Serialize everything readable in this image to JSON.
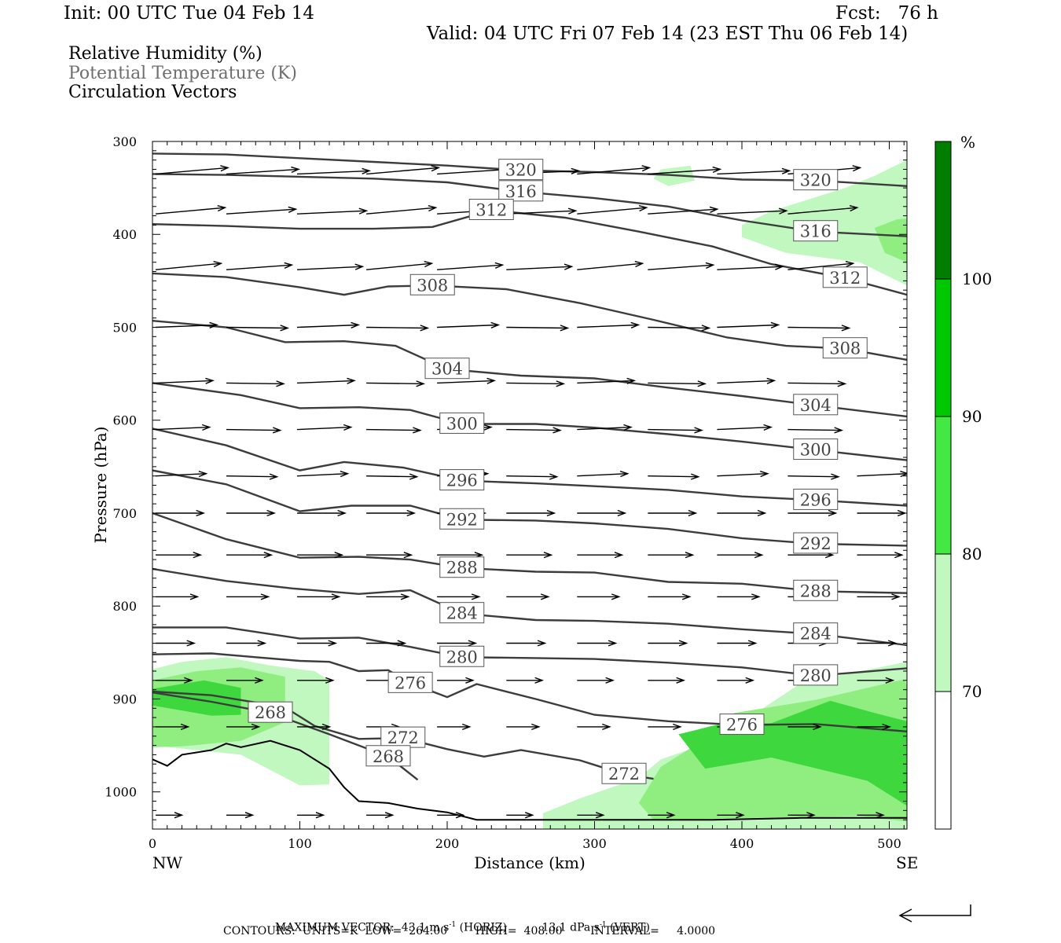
{
  "header": {
    "init": "Init: 00 UTC Tue 04 Feb 14",
    "fcst": "Fcst:   76 h",
    "valid": "Valid: 04 UTC Fri 07 Feb 14 (23 EST Thu 06 Feb 14)"
  },
  "fields": {
    "rh": "Relative Humidity (%)",
    "theta": "Potential Temperature (K)",
    "vectors": "Circulation Vectors"
  },
  "footer": {
    "max_vector_label": "MAXIMUM VECTOR:",
    "horiz_value": "43.1 m s",
    "horiz_unit_tail": " (HORIZ)",
    "vert_value": "13.1 dPa s",
    "vert_unit_tail": " (VERT)",
    "superscript": "-1",
    "contours": "CONTOURS:  UNITS=K  LOW=  264.00        HIGH=  408.00        INTERVAL=     4.0000"
  },
  "colors": {
    "rh_70_80": "#c0f8c0",
    "rh_80_90": "#90ee80",
    "rh_90_100": "#3ed83e",
    "rh_100": "#00a000",
    "contour": "#3c3c3c",
    "ground": "#000000"
  },
  "chart_data": {
    "type": "cross-section",
    "xlabel": "Distance (km)",
    "ylabel": "Pressure (hPa)",
    "x_end_labels": {
      "left": "NW",
      "right": "SE"
    },
    "xlim": [
      0,
      512
    ],
    "ylim": [
      300,
      1040
    ],
    "x_ticks": [
      0,
      100,
      200,
      300,
      400,
      500
    ],
    "y_ticks": [
      300,
      400,
      500,
      600,
      700,
      800,
      900,
      1000
    ],
    "colorbar": {
      "unit": "%",
      "levels": [
        70,
        80,
        90,
        100
      ]
    },
    "isentropes": [
      {
        "theta": 320,
        "points": [
          [
            0,
            313
          ],
          [
            50,
            314
          ],
          [
            100,
            318
          ],
          [
            150,
            322
          ],
          [
            200,
            326
          ],
          [
            250,
            331
          ],
          [
            300,
            333
          ],
          [
            350,
            336
          ],
          [
            400,
            341
          ],
          [
            450,
            342
          ],
          [
            512,
            348
          ]
        ]
      },
      {
        "theta": 316,
        "points": [
          [
            0,
            335
          ],
          [
            50,
            336
          ],
          [
            100,
            338
          ],
          [
            150,
            340
          ],
          [
            200,
            344
          ],
          [
            250,
            354
          ],
          [
            300,
            361
          ],
          [
            350,
            370
          ],
          [
            400,
            385
          ],
          [
            450,
            397
          ],
          [
            512,
            402
          ]
        ]
      },
      {
        "theta": 312,
        "points": [
          [
            0,
            389
          ],
          [
            50,
            391
          ],
          [
            100,
            394
          ],
          [
            150,
            394
          ],
          [
            190,
            392
          ],
          [
            230,
            374
          ],
          [
            280,
            382
          ],
          [
            330,
            397
          ],
          [
            380,
            413
          ],
          [
            420,
            432
          ],
          [
            470,
            447
          ],
          [
            512,
            465
          ]
        ]
      },
      {
        "theta": 308,
        "points": [
          [
            0,
            442
          ],
          [
            50,
            446
          ],
          [
            100,
            457
          ],
          [
            130,
            465
          ],
          [
            160,
            456
          ],
          [
            190,
            455
          ],
          [
            240,
            459
          ],
          [
            290,
            474
          ],
          [
            340,
            492
          ],
          [
            390,
            511
          ],
          [
            430,
            520
          ],
          [
            470,
            523
          ],
          [
            512,
            535
          ]
        ]
      },
      {
        "theta": 304,
        "points": [
          [
            0,
            493
          ],
          [
            50,
            500
          ],
          [
            90,
            516
          ],
          [
            130,
            515
          ],
          [
            165,
            520
          ],
          [
            200,
            545
          ],
          [
            250,
            552
          ],
          [
            300,
            555
          ],
          [
            350,
            565
          ],
          [
            400,
            574
          ],
          [
            450,
            584
          ],
          [
            512,
            596
          ]
        ]
      },
      {
        "theta": 300,
        "points": [
          [
            0,
            560
          ],
          [
            60,
            573
          ],
          [
            100,
            587
          ],
          [
            140,
            586
          ],
          [
            175,
            589
          ],
          [
            210,
            604
          ],
          [
            260,
            604
          ],
          [
            300,
            608
          ],
          [
            350,
            615
          ],
          [
            400,
            623
          ],
          [
            450,
            632
          ],
          [
            512,
            643
          ]
        ]
      },
      {
        "theta": 296,
        "points": [
          [
            0,
            609
          ],
          [
            50,
            627
          ],
          [
            100,
            654
          ],
          [
            130,
            645
          ],
          [
            170,
            651
          ],
          [
            210,
            665
          ],
          [
            260,
            668
          ],
          [
            300,
            671
          ],
          [
            350,
            675
          ],
          [
            400,
            682
          ],
          [
            450,
            686
          ],
          [
            512,
            692
          ]
        ]
      },
      {
        "theta": 292,
        "points": [
          [
            0,
            654
          ],
          [
            50,
            669
          ],
          [
            100,
            698
          ],
          [
            135,
            692
          ],
          [
            175,
            692
          ],
          [
            210,
            707
          ],
          [
            260,
            708
          ],
          [
            300,
            711
          ],
          [
            350,
            717
          ],
          [
            400,
            727
          ],
          [
            450,
            733
          ],
          [
            512,
            735
          ]
        ]
      },
      {
        "theta": 288,
        "points": [
          [
            0,
            700
          ],
          [
            50,
            728
          ],
          [
            100,
            748
          ],
          [
            140,
            747
          ],
          [
            175,
            750
          ],
          [
            210,
            759
          ],
          [
            260,
            763
          ],
          [
            300,
            764
          ],
          [
            350,
            774
          ],
          [
            400,
            776
          ],
          [
            450,
            784
          ],
          [
            512,
            786
          ]
        ]
      },
      {
        "theta": 284,
        "points": [
          [
            0,
            760
          ],
          [
            50,
            773
          ],
          [
            95,
            781
          ],
          [
            140,
            787
          ],
          [
            175,
            783
          ],
          [
            210,
            808
          ],
          [
            260,
            815
          ],
          [
            300,
            816
          ],
          [
            350,
            819
          ],
          [
            400,
            825
          ],
          [
            450,
            830
          ],
          [
            512,
            842
          ]
        ]
      },
      {
        "theta": 280,
        "points": [
          [
            0,
            823
          ],
          [
            50,
            823
          ],
          [
            100,
            835
          ],
          [
            140,
            834
          ],
          [
            175,
            844
          ],
          [
            210,
            855
          ],
          [
            260,
            856
          ],
          [
            300,
            857
          ],
          [
            350,
            861
          ],
          [
            400,
            866
          ],
          [
            450,
            875
          ],
          [
            512,
            867
          ]
        ]
      },
      {
        "theta": 276,
        "points": [
          [
            0,
            852
          ],
          [
            40,
            851
          ],
          [
            70,
            855
          ],
          [
            100,
            859
          ],
          [
            120,
            860
          ],
          [
            140,
            870
          ],
          [
            160,
            869
          ],
          [
            175,
            883
          ],
          [
            200,
            898
          ],
          [
            220,
            884
          ],
          [
            260,
            900
          ],
          [
            300,
            917
          ],
          [
            350,
            924
          ],
          [
            400,
            928
          ],
          [
            450,
            927
          ],
          [
            512,
            935
          ]
        ]
      },
      {
        "theta": 272,
        "points": [
          [
            0,
            892
          ],
          [
            40,
            896
          ],
          [
            90,
            909
          ],
          [
            110,
            929
          ],
          [
            140,
            943
          ],
          [
            170,
            942
          ],
          [
            200,
            954
          ],
          [
            225,
            962
          ],
          [
            250,
            955
          ],
          [
            290,
            966
          ],
          [
            320,
            981
          ],
          [
            340,
            986
          ]
        ]
      },
      {
        "theta": 268,
        "points": [
          [
            0,
            893
          ],
          [
            40,
            903
          ],
          [
            80,
            915
          ],
          [
            120,
            938
          ],
          [
            160,
            962
          ],
          [
            180,
            987
          ]
        ]
      }
    ],
    "rh_regions": [
      {
        "level": 70,
        "polygon": [
          [
            0,
            868
          ],
          [
            20,
            860
          ],
          [
            50,
            855
          ],
          [
            80,
            864
          ],
          [
            110,
            870
          ],
          [
            120,
            880
          ],
          [
            120,
            992
          ],
          [
            100,
            993
          ],
          [
            60,
            960
          ],
          [
            0,
            950
          ]
        ]
      },
      {
        "level": 80,
        "polygon": [
          [
            0,
            880
          ],
          [
            30,
            870
          ],
          [
            60,
            866
          ],
          [
            90,
            876
          ],
          [
            90,
            925
          ],
          [
            60,
            945
          ],
          [
            20,
            951
          ],
          [
            0,
            952
          ]
        ]
      },
      {
        "level": 90,
        "polygon": [
          [
            0,
            889
          ],
          [
            35,
            880
          ],
          [
            60,
            888
          ],
          [
            60,
            917
          ],
          [
            40,
            918
          ],
          [
            0,
            907
          ]
        ]
      },
      {
        "level": 70,
        "polygon": [
          [
            265,
            1023
          ],
          [
            290,
            1007
          ],
          [
            330,
            985
          ],
          [
            345,
            965
          ],
          [
            380,
            946
          ],
          [
            440,
            883
          ],
          [
            512,
            860
          ],
          [
            512,
            1040
          ],
          [
            265,
            1040
          ]
        ]
      },
      {
        "level": 80,
        "polygon": [
          [
            330,
            1012
          ],
          [
            345,
            973
          ],
          [
            370,
            948
          ],
          [
            395,
            915
          ],
          [
            450,
            901
          ],
          [
            510,
            879
          ],
          [
            512,
            886
          ],
          [
            512,
            1032
          ],
          [
            480,
            1026
          ],
          [
            340,
            1030
          ]
        ]
      },
      {
        "level": 90,
        "polygon": [
          [
            357,
            938
          ],
          [
            385,
            927
          ],
          [
            420,
            926
          ],
          [
            460,
            902
          ],
          [
            490,
            915
          ],
          [
            512,
            924
          ],
          [
            512,
            1015
          ],
          [
            485,
            988
          ],
          [
            420,
            963
          ],
          [
            375,
            975
          ]
        ]
      },
      {
        "level": 70,
        "polygon": [
          [
            340,
            340
          ],
          [
            345,
            330
          ],
          [
            365,
            326
          ],
          [
            368,
            342
          ],
          [
            350,
            348
          ]
        ]
      },
      {
        "level": 70,
        "polygon": [
          [
            400,
            390
          ],
          [
            420,
            375
          ],
          [
            470,
            350
          ],
          [
            490,
            337
          ],
          [
            512,
            320
          ],
          [
            512,
            455
          ],
          [
            480,
            430
          ],
          [
            430,
            420
          ],
          [
            400,
            403
          ]
        ]
      },
      {
        "level": 80,
        "polygon": [
          [
            490,
            393
          ],
          [
            505,
            384
          ],
          [
            512,
            383
          ],
          [
            512,
            430
          ],
          [
            497,
            420
          ]
        ]
      }
    ],
    "vectors_sample": [
      {
        "x": 0,
        "p": 335,
        "u": 35,
        "w": 0
      },
      {
        "x": 200,
        "p": 520,
        "u": 35,
        "w": 0
      },
      {
        "x": 300,
        "p": 700,
        "u": 20,
        "w": 0
      },
      {
        "x": 400,
        "p": 950,
        "u": 10,
        "w": 0
      }
    ]
  }
}
